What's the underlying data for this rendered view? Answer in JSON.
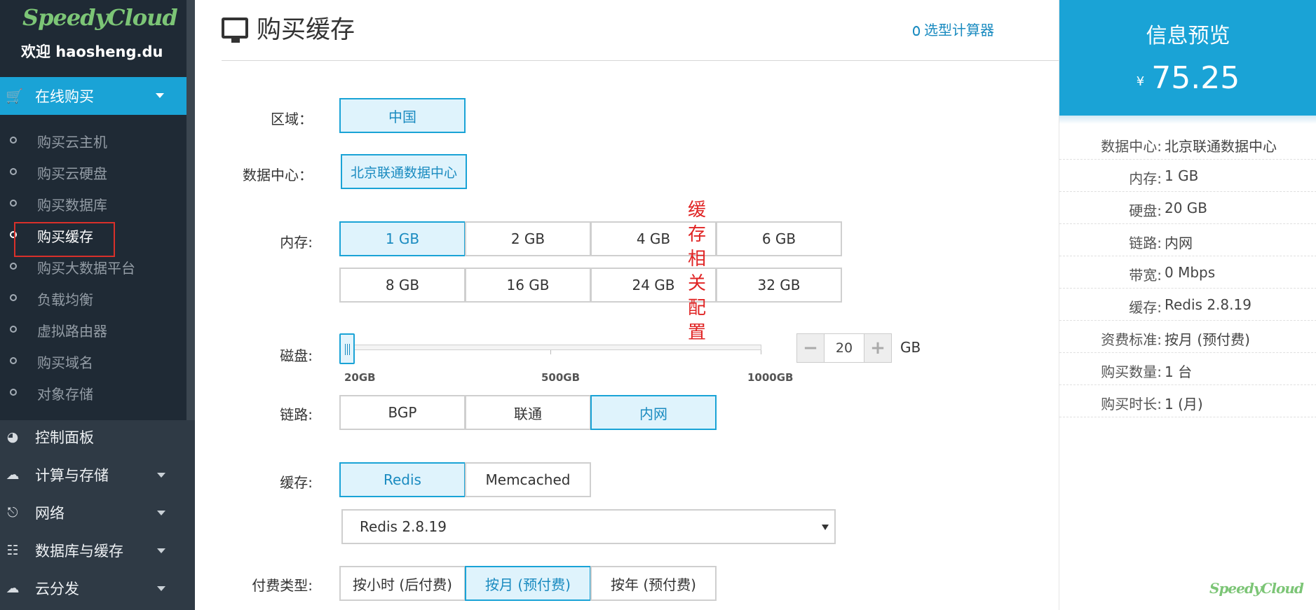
{
  "sidebar": {
    "logo": "SpeedyCloud",
    "welcome": "欢迎 haosheng.du",
    "active_menu": {
      "label": "在线购买",
      "icon": "cart-icon"
    },
    "sub_items": [
      {
        "label": "购买云主机"
      },
      {
        "label": "购买云硬盘"
      },
      {
        "label": "购买数据库"
      },
      {
        "label": "购买缓存"
      },
      {
        "label": "购买大数据平台"
      },
      {
        "label": "负载均衡"
      },
      {
        "label": "虚拟路由器"
      },
      {
        "label": "购买域名"
      },
      {
        "label": "对象存储"
      }
    ],
    "menus": [
      {
        "label": "控制面板",
        "icon": "dashboard-icon"
      },
      {
        "label": "计算与存储",
        "icon": "cloud-icon"
      },
      {
        "label": "网络",
        "icon": "network-icon"
      },
      {
        "label": "数据库与缓存",
        "icon": "database-icon"
      },
      {
        "label": "云分发",
        "icon": "cdn-icon"
      }
    ]
  },
  "main": {
    "title": "购买缓存",
    "calculator_link": "选型计算器",
    "region": {
      "label": "区域：",
      "options": [
        "中国"
      ],
      "selected": "中国"
    },
    "datacenter": {
      "label": "数据中心：",
      "options": [
        "北京联通数据中心"
      ],
      "selected": "北京联通数据中心"
    },
    "memory": {
      "label": "内存:",
      "options": [
        "1 GB",
        "2 GB",
        "4 GB",
        "6 GB",
        "8 GB",
        "16 GB",
        "24 GB",
        "32 GB"
      ],
      "selected": "1 GB"
    },
    "annotation": "缓存相关配置",
    "disk": {
      "label": "磁盘:",
      "min_label": "20GB",
      "mid_label": "500GB",
      "max_label": "1000GB",
      "value": "20",
      "value_fraction": 0,
      "unit": "GB",
      "minus": "−",
      "plus": "+"
    },
    "link": {
      "label": "链路:",
      "options": [
        "BGP",
        "联通",
        "内网"
      ],
      "selected": "内网"
    },
    "cache": {
      "label": "缓存:",
      "options": [
        "Redis",
        "Memcached"
      ],
      "selected": "Redis",
      "version": "Redis 2.8.19"
    },
    "billing": {
      "label": "付费类型:",
      "options": [
        "按小时 (后付费)",
        "按月 (预付费)",
        "按年 (预付费)"
      ],
      "selected": "按月 (预付费)"
    }
  },
  "preview": {
    "title": "信息预览",
    "currency": "¥",
    "price": "75.25",
    "rows": [
      {
        "k": "数据中心:",
        "v": "北京联通数据中心"
      },
      {
        "k": "内存:",
        "v": "1 GB"
      },
      {
        "k": "硬盘:",
        "v": "20 GB"
      },
      {
        "k": "链路:",
        "v": "内网"
      },
      {
        "k": "带宽:",
        "v": "0 Mbps"
      },
      {
        "k": "缓存:",
        "v": "Redis 2.8.19"
      },
      {
        "k": "资费标准:",
        "v": "按月 (预付费)"
      },
      {
        "k": "购买数量:",
        "v": "1 台"
      },
      {
        "k": "购买时长:",
        "v": "1 (月)"
      }
    ],
    "brand": "SpeedyCloud"
  },
  "colors": {
    "accent": "#1aa3d6",
    "sidebar": "#1f2a35",
    "annotation": "#e02424",
    "logo": "#7cc576"
  }
}
